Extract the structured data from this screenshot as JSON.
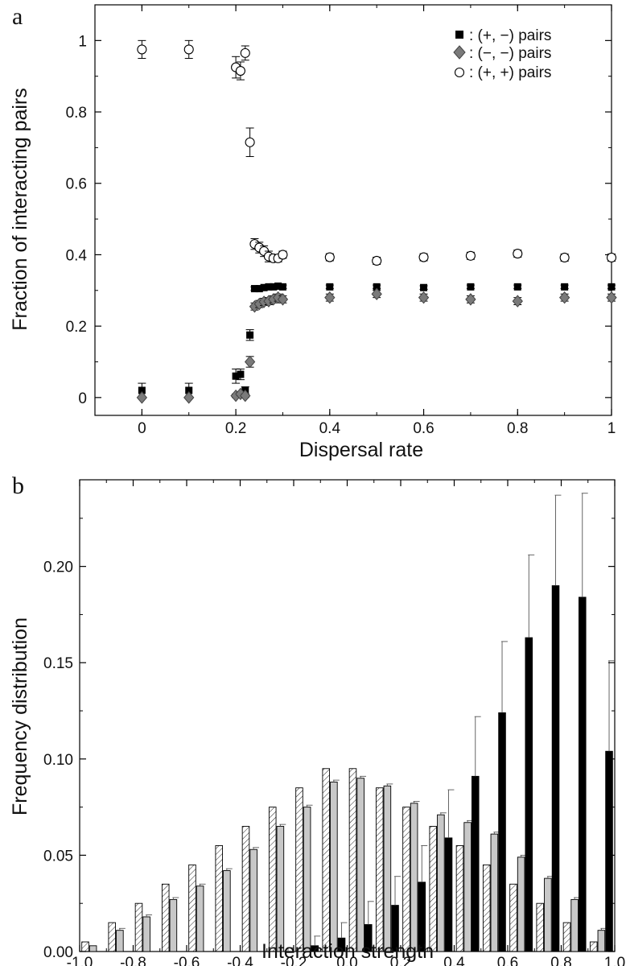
{
  "chart_data": [
    {
      "panel_label": "a",
      "type": "scatter",
      "xlabel": "Dispersal rate",
      "ylabel": "Fraction of interacting pairs",
      "xlim": [
        -0.1,
        1.0
      ],
      "ylim": [
        -0.05,
        1.1
      ],
      "xticks": [
        0,
        0.2,
        0.4,
        0.6,
        0.8,
        1
      ],
      "xtick_labels": [
        "0",
        "0.2",
        "0.4",
        "0.6",
        "0.8",
        "1"
      ],
      "yticks": [
        0,
        0.2,
        0.4,
        0.6,
        0.8,
        1
      ],
      "ytick_labels": [
        "0",
        "0.2",
        "0.4",
        "0.6",
        "0.8",
        "1"
      ],
      "legend_position": "top-right",
      "series": [
        {
          "name": ": (+, −) pairs",
          "marker": "square-filled",
          "color": "#000000",
          "x": [
            0,
            0.1,
            0.2,
            0.21,
            0.22,
            0.23,
            0.24,
            0.25,
            0.26,
            0.27,
            0.28,
            0.29,
            0.3,
            0.4,
            0.5,
            0.6,
            0.7,
            0.8,
            0.9,
            1.0
          ],
          "y": [
            0.02,
            0.02,
            0.06,
            0.065,
            0.02,
            0.175,
            0.305,
            0.305,
            0.308,
            0.31,
            0.31,
            0.312,
            0.31,
            0.31,
            0.31,
            0.308,
            0.31,
            0.31,
            0.31,
            0.31
          ],
          "err": [
            0.02,
            0.02,
            0.02,
            0.015,
            0.01,
            0.015,
            0.005,
            0.005,
            0.005,
            0.005,
            0.005,
            0.005,
            0.005,
            0.005,
            0.005,
            0.005,
            0.005,
            0.005,
            0.005,
            0.005
          ]
        },
        {
          "name": ": (−, −) pairs",
          "marker": "diamond-filled",
          "color": "#7a7a7a",
          "x": [
            0,
            0.1,
            0.2,
            0.21,
            0.22,
            0.23,
            0.24,
            0.25,
            0.26,
            0.27,
            0.28,
            0.29,
            0.3,
            0.4,
            0.5,
            0.6,
            0.7,
            0.8,
            0.9,
            1.0
          ],
          "y": [
            0.0,
            0.0,
            0.005,
            0.01,
            0.005,
            0.1,
            0.255,
            0.262,
            0.268,
            0.27,
            0.275,
            0.28,
            0.275,
            0.28,
            0.29,
            0.28,
            0.275,
            0.27,
            0.28,
            0.28
          ],
          "err": [
            0.0,
            0.0,
            0.005,
            0.005,
            0.005,
            0.015,
            0.01,
            0.01,
            0.01,
            0.01,
            0.01,
            0.01,
            0.01,
            0.01,
            0.01,
            0.01,
            0.01,
            0.01,
            0.01,
            0.01
          ]
        },
        {
          "name": ": (+, +) pairs",
          "marker": "circle-open",
          "color": "#000000",
          "x": [
            0,
            0.1,
            0.2,
            0.21,
            0.22,
            0.23,
            0.24,
            0.25,
            0.26,
            0.27,
            0.28,
            0.29,
            0.3,
            0.4,
            0.5,
            0.6,
            0.7,
            0.8,
            0.9,
            1.0
          ],
          "y": [
            0.975,
            0.975,
            0.925,
            0.915,
            0.965,
            0.715,
            0.43,
            0.42,
            0.41,
            0.395,
            0.39,
            0.39,
            0.4,
            0.393,
            0.383,
            0.393,
            0.397,
            0.403,
            0.392,
            0.392
          ],
          "err": [
            0.025,
            0.025,
            0.03,
            0.025,
            0.02,
            0.04,
            0.015,
            0.015,
            0.015,
            0.015,
            0.01,
            0.01,
            0.01,
            0.01,
            0.01,
            0.01,
            0.01,
            0.01,
            0.01,
            0.01
          ]
        }
      ]
    },
    {
      "panel_label": "b",
      "type": "bar",
      "xlabel": "Interaction strength",
      "ylabel": "Frequency distribution",
      "xlim": [
        -1.0,
        1.0
      ],
      "ylim": [
        0.0,
        0.245
      ],
      "xticks": [
        -1.0,
        -0.8,
        -0.6,
        -0.4,
        -0.2,
        0.0,
        0.2,
        0.4,
        0.6,
        0.8,
        1.0
      ],
      "xtick_labels": [
        "-1.0",
        "-0.8",
        "-0.6",
        "-0.4",
        "-0.2",
        "0.0",
        "0.2",
        "0.4",
        "0.6",
        "0.8",
        "1.0"
      ],
      "yticks": [
        0.0,
        0.05,
        0.1,
        0.15,
        0.2
      ],
      "ytick_labels": [
        "0.00",
        "0.05",
        "0.10",
        "0.15",
        "0.20"
      ],
      "bin_centers": [
        -0.95,
        -0.85,
        -0.75,
        -0.65,
        -0.55,
        -0.45,
        -0.35,
        -0.25,
        -0.15,
        -0.05,
        0.05,
        0.15,
        0.25,
        0.35,
        0.45,
        0.55,
        0.65,
        0.75,
        0.85,
        0.95
      ],
      "series": [
        {
          "style": "hatched",
          "color": "#ffffff",
          "values": [
            0.005,
            0.015,
            0.025,
            0.035,
            0.045,
            0.055,
            0.065,
            0.075,
            0.085,
            0.095,
            0.095,
            0.085,
            0.075,
            0.065,
            0.055,
            0.045,
            0.035,
            0.025,
            0.015,
            0.005
          ],
          "err": [
            0,
            0,
            0,
            0,
            0,
            0,
            0,
            0,
            0,
            0,
            0,
            0,
            0,
            0,
            0,
            0,
            0,
            0,
            0,
            0
          ]
        },
        {
          "style": "gray",
          "color": "#c8c8c8",
          "values": [
            0.003,
            0.011,
            0.018,
            0.027,
            0.034,
            0.042,
            0.053,
            0.065,
            0.075,
            0.088,
            0.09,
            0.086,
            0.077,
            0.071,
            0.067,
            0.061,
            0.049,
            0.038,
            0.027,
            0.011
          ],
          "err": [
            0,
            0.001,
            0.001,
            0.001,
            0.001,
            0.001,
            0.001,
            0.001,
            0.001,
            0.001,
            0.001,
            0.001,
            0.001,
            0.001,
            0.001,
            0.001,
            0.001,
            0.001,
            0.001,
            0.001
          ]
        },
        {
          "style": "black",
          "color": "#000000",
          "values": [
            0,
            0,
            0,
            0,
            0,
            0,
            0,
            0,
            0.003,
            0.007,
            0.014,
            0.024,
            0.036,
            0.059,
            0.091,
            0.124,
            0.163,
            0.19,
            0.184,
            0.104
          ],
          "err": [
            0,
            0,
            0,
            0,
            0,
            0,
            0,
            0.002,
            0.005,
            0.008,
            0.012,
            0.015,
            0.019,
            0.025,
            0.031,
            0.037,
            0.043,
            0.047,
            0.054,
            0.047
          ]
        }
      ]
    }
  ]
}
